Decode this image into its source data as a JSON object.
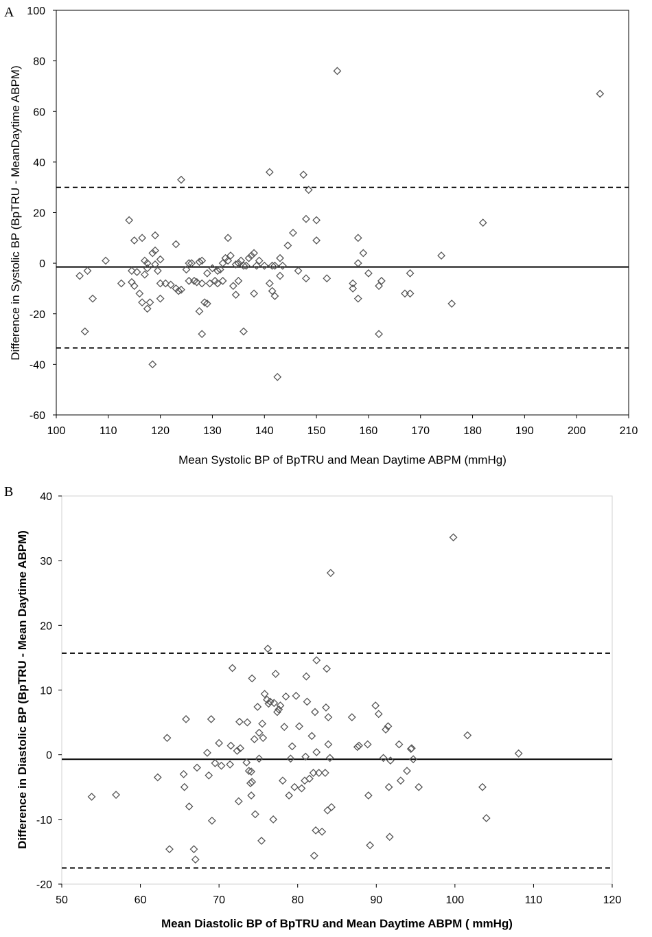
{
  "chart_data": [
    {
      "panel_label": "A",
      "type": "scatter",
      "xlabel": "Mean Systolic BP of BpTRU and Mean Daytime ABPM (mmHg)",
      "ylabel": "Difference in Systolic BP (BpTRU - MeanDaytime ABPM)",
      "xlim": [
        100,
        210
      ],
      "ylim": [
        -60,
        100
      ],
      "x_ticks": [
        100,
        110,
        120,
        130,
        140,
        150,
        160,
        170,
        180,
        190,
        200,
        210
      ],
      "y_ticks": [
        -60,
        -40,
        -20,
        0,
        20,
        40,
        60,
        80,
        100
      ],
      "grid": false,
      "marker": "diamond",
      "mean_line": -1.5,
      "limits_of_agreement": [
        -33.5,
        30
      ],
      "points": [
        [
          104.5,
          -5
        ],
        [
          105.5,
          -27
        ],
        [
          106,
          -3
        ],
        [
          107,
          -14
        ],
        [
          109.5,
          1
        ],
        [
          112.5,
          -8
        ],
        [
          114,
          17
        ],
        [
          114.5,
          -7.5
        ],
        [
          115,
          9
        ],
        [
          114.5,
          -3
        ],
        [
          115,
          -9
        ],
        [
          115.5,
          -3.5
        ],
        [
          116,
          -12
        ],
        [
          116.5,
          -15.5
        ],
        [
          116.5,
          10
        ],
        [
          117,
          -4.5
        ],
        [
          117,
          1
        ],
        [
          117.5,
          -18
        ],
        [
          117.5,
          0
        ],
        [
          117.5,
          -2
        ],
        [
          118,
          -15.5
        ],
        [
          118.5,
          -40
        ],
        [
          118.5,
          4
        ],
        [
          119,
          11
        ],
        [
          119,
          5
        ],
        [
          119,
          -0.5
        ],
        [
          119.5,
          -3
        ],
        [
          120,
          1.5
        ],
        [
          120,
          -8
        ],
        [
          120,
          -14
        ],
        [
          121,
          -8
        ],
        [
          122,
          -8.5
        ],
        [
          123,
          7.5
        ],
        [
          123,
          -10
        ],
        [
          123.5,
          -11
        ],
        [
          124,
          33
        ],
        [
          124,
          -10.5
        ],
        [
          125,
          -2.5
        ],
        [
          125.5,
          0
        ],
        [
          125.5,
          -7
        ],
        [
          126,
          0
        ],
        [
          126.5,
          -7
        ],
        [
          127,
          -7.5
        ],
        [
          127.5,
          0.5
        ],
        [
          127.5,
          -19
        ],
        [
          128,
          1
        ],
        [
          128,
          -28
        ],
        [
          128,
          -8
        ],
        [
          128.5,
          -15.5
        ],
        [
          129,
          -16
        ],
        [
          129,
          -4
        ],
        [
          129.5,
          -8
        ],
        [
          130,
          -2
        ],
        [
          130.5,
          -7
        ],
        [
          131,
          -8
        ],
        [
          131,
          -3
        ],
        [
          131.5,
          -2.5
        ],
        [
          132,
          -7
        ],
        [
          132,
          0
        ],
        [
          132.5,
          2
        ],
        [
          133,
          10
        ],
        [
          133,
          1
        ],
        [
          133.5,
          3
        ],
        [
          134,
          -9
        ],
        [
          134.5,
          -12.5
        ],
        [
          134.5,
          -0.5
        ],
        [
          135,
          0
        ],
        [
          135,
          -7
        ],
        [
          135.5,
          1
        ],
        [
          136,
          -1
        ],
        [
          136,
          -27
        ],
        [
          136.5,
          -1
        ],
        [
          137,
          2
        ],
        [
          137.5,
          3
        ],
        [
          138,
          -12
        ],
        [
          138,
          4
        ],
        [
          138.5,
          -1
        ],
        [
          139,
          1
        ],
        [
          140,
          -1
        ],
        [
          141,
          -8
        ],
        [
          141,
          36
        ],
        [
          141.5,
          -1
        ],
        [
          141.5,
          -11
        ],
        [
          142,
          -13
        ],
        [
          142.5,
          -45
        ],
        [
          142,
          -1
        ],
        [
          143,
          2
        ],
        [
          143,
          -5
        ],
        [
          143.5,
          -1
        ],
        [
          144.5,
          7
        ],
        [
          145.5,
          12
        ],
        [
          146.5,
          -3
        ],
        [
          147.5,
          35
        ],
        [
          148,
          17.5
        ],
        [
          148,
          -6
        ],
        [
          148.5,
          29
        ],
        [
          150,
          17
        ],
        [
          150,
          9
        ],
        [
          152,
          -6
        ],
        [
          154,
          76
        ],
        [
          157,
          -10
        ],
        [
          157,
          -8
        ],
        [
          158,
          0
        ],
        [
          158,
          -14
        ],
        [
          158,
          10
        ],
        [
          159,
          4
        ],
        [
          160,
          -4
        ],
        [
          162,
          -28
        ],
        [
          162,
          -9
        ],
        [
          162.5,
          -7
        ],
        [
          167,
          -12
        ],
        [
          168,
          -4
        ],
        [
          168,
          -12
        ],
        [
          174,
          3
        ],
        [
          176,
          -16
        ],
        [
          182,
          16
        ],
        [
          204.5,
          67
        ]
      ]
    },
    {
      "panel_label": "B",
      "type": "scatter",
      "xlabel": "Mean Diastolic BP of BpTRU and Mean Daytime ABPM ( mmHg)",
      "ylabel": "Difference in Diastolic BP (BpTRU - Mean Daytime ABPM)",
      "xlim": [
        50,
        120
      ],
      "ylim": [
        -20,
        40
      ],
      "x_ticks": [
        50,
        60,
        70,
        80,
        90,
        100,
        110,
        120
      ],
      "y_ticks": [
        -20,
        -10,
        0,
        10,
        20,
        30,
        40
      ],
      "grid": false,
      "marker": "diamond",
      "mean_line": -0.7,
      "limits_of_agreement": [
        -17.5,
        15.7
      ],
      "points": [
        [
          53.8,
          -6.5
        ],
        [
          56.9,
          -6.2
        ],
        [
          62.2,
          -3.5
        ],
        [
          63.4,
          2.6
        ],
        [
          63.7,
          -14.6
        ],
        [
          65.5,
          -3.0
        ],
        [
          65.6,
          -5.0
        ],
        [
          65.8,
          5.5
        ],
        [
          66.2,
          -8.0
        ],
        [
          66.8,
          -14.6
        ],
        [
          67,
          -16.2
        ],
        [
          67.2,
          -2.0
        ],
        [
          68.5,
          0.3
        ],
        [
          68.7,
          -3.2
        ],
        [
          69,
          5.5
        ],
        [
          69.1,
          -10.2
        ],
        [
          69.5,
          -1.3
        ],
        [
          70,
          1.8
        ],
        [
          70.3,
          -1.7
        ],
        [
          71.4,
          -1.5
        ],
        [
          71.5,
          1.4
        ],
        [
          71.7,
          13.4
        ],
        [
          72.3,
          0.6
        ],
        [
          72.5,
          -7.2
        ],
        [
          72.6,
          5.1
        ],
        [
          72.7,
          1.0
        ],
        [
          73.5,
          -1.2
        ],
        [
          73.6,
          5.0
        ],
        [
          73.8,
          -2.5
        ],
        [
          74,
          -4.4
        ],
        [
          74.1,
          -2.6
        ],
        [
          74.2,
          -4.2
        ],
        [
          74.1,
          -6.3
        ],
        [
          74.2,
          11.8
        ],
        [
          74.5,
          2.4
        ],
        [
          74.6,
          -9.2
        ],
        [
          74.9,
          7.4
        ],
        [
          75.1,
          -0.6
        ],
        [
          75.1,
          3.4
        ],
        [
          75.4,
          -13.3
        ],
        [
          75.6,
          2.6
        ],
        [
          75.5,
          4.8
        ],
        [
          75.8,
          9.4
        ],
        [
          76.1,
          8.5
        ],
        [
          76.2,
          16.4
        ],
        [
          76.3,
          7.9
        ],
        [
          76.5,
          8.2
        ],
        [
          76.9,
          -10.0
        ],
        [
          77,
          8.0
        ],
        [
          77.2,
          12.5
        ],
        [
          77.4,
          6.6
        ],
        [
          77.6,
          7.0
        ],
        [
          77.8,
          7.6
        ],
        [
          78.1,
          -4.0
        ],
        [
          78.3,
          4.3
        ],
        [
          78.5,
          9.0
        ],
        [
          78.9,
          -6.3
        ],
        [
          79.1,
          -0.6
        ],
        [
          79.3,
          1.3
        ],
        [
          79.6,
          -5.0
        ],
        [
          79.8,
          9.1
        ],
        [
          80.2,
          4.4
        ],
        [
          80.5,
          -5.2
        ],
        [
          80.9,
          -4.0
        ],
        [
          81,
          -0.3
        ],
        [
          81.1,
          12.1
        ],
        [
          81.2,
          8.2
        ],
        [
          81.5,
          -3.7
        ],
        [
          81.8,
          2.9
        ],
        [
          82.0,
          -2.8
        ],
        [
          82.1,
          -15.6
        ],
        [
          82.2,
          6.6
        ],
        [
          82.4,
          14.6
        ],
        [
          82.4,
          0.4
        ],
        [
          82.3,
          -11.7
        ],
        [
          82.7,
          -2.8
        ],
        [
          83.1,
          -11.9
        ],
        [
          83.5,
          -2.8
        ],
        [
          83.6,
          7.3
        ],
        [
          83.7,
          13.3
        ],
        [
          83.8,
          -8.6
        ],
        [
          83.9,
          1.6
        ],
        [
          83.9,
          5.8
        ],
        [
          84.1,
          -0.5
        ],
        [
          84.2,
          28.1
        ],
        [
          84.3,
          -8.1
        ],
        [
          86.9,
          5.8
        ],
        [
          87.6,
          1.2
        ],
        [
          87.8,
          1.4
        ],
        [
          88.9,
          1.6
        ],
        [
          89,
          -6.3
        ],
        [
          89.2,
          -14.0
        ],
        [
          89.9,
          7.6
        ],
        [
          90.3,
          6.3
        ],
        [
          90.9,
          -0.5
        ],
        [
          91.2,
          3.9
        ],
        [
          91.5,
          4.4
        ],
        [
          91.6,
          -5.0
        ],
        [
          91.8,
          -0.9
        ],
        [
          91.7,
          -12.7
        ],
        [
          92.9,
          1.6
        ],
        [
          93.1,
          -4.0
        ],
        [
          93.9,
          -2.5
        ],
        [
          94.4,
          0.9
        ],
        [
          94.5,
          1.0
        ],
        [
          94.7,
          -0.7
        ],
        [
          95.4,
          -5.0
        ],
        [
          99.8,
          33.6
        ],
        [
          101.6,
          3.0
        ],
        [
          103.5,
          -5.0
        ],
        [
          104,
          -9.8
        ],
        [
          108.1,
          0.2
        ]
      ]
    }
  ]
}
